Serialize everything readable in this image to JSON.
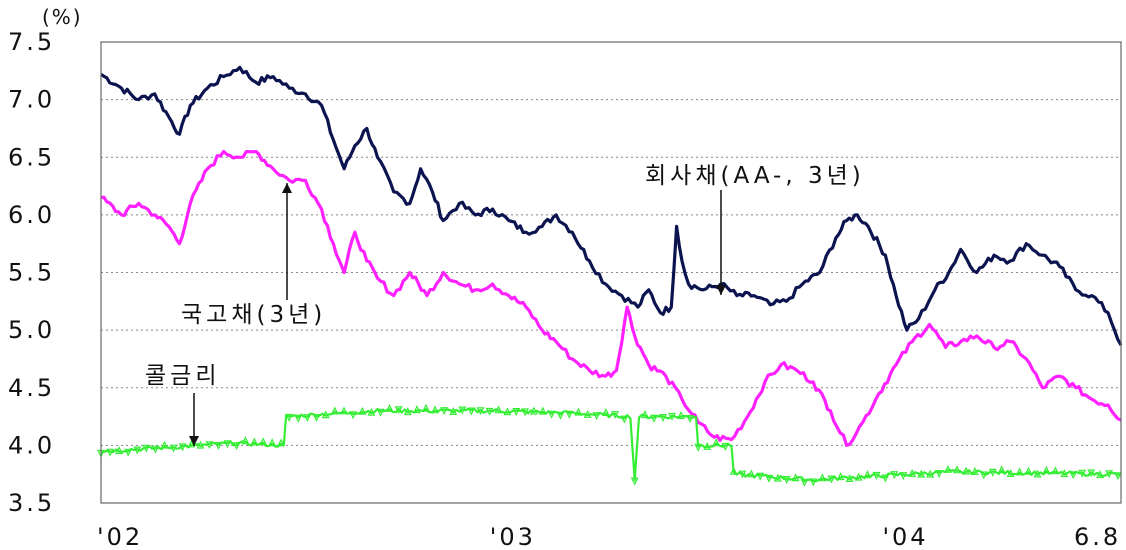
{
  "chart_data": {
    "type": "line",
    "unit_label": "(%)",
    "ylim": [
      3.5,
      7.5
    ],
    "yticks": [
      7.5,
      7.0,
      6.5,
      6.0,
      5.5,
      5.0,
      4.5,
      4.0,
      3.5
    ],
    "ytick_labels": [
      "7.5",
      "7.0",
      "6.5",
      "6.0",
      "5.5",
      "5.0",
      "4.5",
      "4.0",
      "3.5"
    ],
    "x_range": [
      "2002-01-01",
      "2004-08-06"
    ],
    "xticks": [
      {
        "date": "2002-01-01",
        "label": "'02"
      },
      {
        "date": "2003-01-01",
        "label": "'03"
      },
      {
        "date": "2004-01-01",
        "label": "'04"
      },
      {
        "date": "2004-08-01",
        "label": "6.8"
      }
    ],
    "grid": {
      "horizontal": true,
      "style": "dotted"
    },
    "series": [
      {
        "name": "회사채(AA-, 3년)",
        "color": "#0c1450",
        "points": [
          [
            "2002-01-01",
            7.22
          ],
          [
            "2002-01-20",
            7.1
          ],
          [
            "2002-02-05",
            7.0
          ],
          [
            "2002-02-20",
            7.05
          ],
          [
            "2002-03-05",
            6.85
          ],
          [
            "2002-03-15",
            6.7
          ],
          [
            "2002-03-25",
            6.95
          ],
          [
            "2002-04-10",
            7.1
          ],
          [
            "2002-04-25",
            7.2
          ],
          [
            "2002-05-10",
            7.28
          ],
          [
            "2002-05-25",
            7.15
          ],
          [
            "2002-06-10",
            7.2
          ],
          [
            "2002-06-25",
            7.1
          ],
          [
            "2002-07-10",
            7.05
          ],
          [
            "2002-07-25",
            6.95
          ],
          [
            "2002-08-05",
            6.65
          ],
          [
            "2002-08-15",
            6.4
          ],
          [
            "2002-08-25",
            6.6
          ],
          [
            "2002-09-05",
            6.75
          ],
          [
            "2002-09-15",
            6.5
          ],
          [
            "2002-09-30",
            6.2
          ],
          [
            "2002-10-15",
            6.1
          ],
          [
            "2002-10-25",
            6.4
          ],
          [
            "2002-11-05",
            6.2
          ],
          [
            "2002-11-15",
            5.95
          ],
          [
            "2002-11-30",
            6.1
          ],
          [
            "2002-12-15",
            6.0
          ],
          [
            "2002-12-31",
            6.05
          ],
          [
            "2003-01-15",
            5.95
          ],
          [
            "2003-01-31",
            5.85
          ],
          [
            "2003-02-15",
            5.9
          ],
          [
            "2003-02-28",
            6.0
          ],
          [
            "2003-03-15",
            5.85
          ],
          [
            "2003-03-31",
            5.6
          ],
          [
            "2003-04-15",
            5.4
          ],
          [
            "2003-04-30",
            5.3
          ],
          [
            "2003-05-15",
            5.2
          ],
          [
            "2003-05-25",
            5.35
          ],
          [
            "2003-06-05",
            5.15
          ],
          [
            "2003-06-15",
            5.2
          ],
          [
            "2003-06-20",
            5.9
          ],
          [
            "2003-06-25",
            5.6
          ],
          [
            "2003-07-01",
            5.4
          ],
          [
            "2003-07-15",
            5.35
          ],
          [
            "2003-07-31",
            5.4
          ],
          [
            "2003-08-15",
            5.3
          ],
          [
            "2003-08-31",
            5.3
          ],
          [
            "2003-09-15",
            5.22
          ],
          [
            "2003-09-30",
            5.25
          ],
          [
            "2003-10-15",
            5.4
          ],
          [
            "2003-10-31",
            5.5
          ],
          [
            "2003-11-15",
            5.8
          ],
          [
            "2003-11-25",
            5.95
          ],
          [
            "2003-12-05",
            6.0
          ],
          [
            "2003-12-15",
            5.9
          ],
          [
            "2003-12-31",
            5.65
          ],
          [
            "2004-01-10",
            5.3
          ],
          [
            "2004-01-20",
            5.0
          ],
          [
            "2004-01-31",
            5.1
          ],
          [
            "2004-02-15",
            5.35
          ],
          [
            "2004-02-28",
            5.5
          ],
          [
            "2004-03-10",
            5.7
          ],
          [
            "2004-03-25",
            5.5
          ],
          [
            "2004-04-10",
            5.65
          ],
          [
            "2004-04-25",
            5.6
          ],
          [
            "2004-05-10",
            5.75
          ],
          [
            "2004-05-25",
            5.65
          ],
          [
            "2004-06-10",
            5.55
          ],
          [
            "2004-06-25",
            5.35
          ],
          [
            "2004-07-10",
            5.3
          ],
          [
            "2004-07-25",
            5.15
          ],
          [
            "2004-08-06",
            4.87
          ]
        ]
      },
      {
        "name": "국고채(3년)",
        "color": "#ff21ff",
        "points": [
          [
            "2002-01-01",
            6.15
          ],
          [
            "2002-01-20",
            6.0
          ],
          [
            "2002-02-05",
            6.1
          ],
          [
            "2002-02-20",
            6.0
          ],
          [
            "2002-03-05",
            5.9
          ],
          [
            "2002-03-15",
            5.75
          ],
          [
            "2002-03-25",
            6.1
          ],
          [
            "2002-04-10",
            6.4
          ],
          [
            "2002-04-25",
            6.55
          ],
          [
            "2002-05-10",
            6.5
          ],
          [
            "2002-05-25",
            6.55
          ],
          [
            "2002-06-10",
            6.4
          ],
          [
            "2002-06-25",
            6.3
          ],
          [
            "2002-07-10",
            6.3
          ],
          [
            "2002-07-25",
            6.05
          ],
          [
            "2002-08-05",
            5.75
          ],
          [
            "2002-08-15",
            5.5
          ],
          [
            "2002-08-25",
            5.85
          ],
          [
            "2002-09-05",
            5.6
          ],
          [
            "2002-09-15",
            5.45
          ],
          [
            "2002-09-30",
            5.3
          ],
          [
            "2002-10-15",
            5.5
          ],
          [
            "2002-10-31",
            5.3
          ],
          [
            "2002-11-15",
            5.5
          ],
          [
            "2002-11-30",
            5.4
          ],
          [
            "2002-12-15",
            5.35
          ],
          [
            "2002-12-31",
            5.4
          ],
          [
            "2003-01-15",
            5.3
          ],
          [
            "2003-01-31",
            5.2
          ],
          [
            "2003-02-15",
            5.0
          ],
          [
            "2003-02-28",
            4.9
          ],
          [
            "2003-03-15",
            4.75
          ],
          [
            "2003-03-31",
            4.65
          ],
          [
            "2003-04-15",
            4.6
          ],
          [
            "2003-04-25",
            4.65
          ],
          [
            "2003-05-05",
            5.2
          ],
          [
            "2003-05-12",
            4.95
          ],
          [
            "2003-05-25",
            4.7
          ],
          [
            "2003-06-10",
            4.6
          ],
          [
            "2003-06-25",
            4.4
          ],
          [
            "2003-07-10",
            4.2
          ],
          [
            "2003-07-25",
            4.07
          ],
          [
            "2003-08-10",
            4.05
          ],
          [
            "2003-08-25",
            4.25
          ],
          [
            "2003-09-10",
            4.55
          ],
          [
            "2003-09-25",
            4.7
          ],
          [
            "2003-10-10",
            4.65
          ],
          [
            "2003-10-25",
            4.55
          ],
          [
            "2003-11-10",
            4.3
          ],
          [
            "2003-11-25",
            4.0
          ],
          [
            "2003-12-10",
            4.2
          ],
          [
            "2003-12-25",
            4.45
          ],
          [
            "2004-01-10",
            4.7
          ],
          [
            "2004-01-25",
            4.9
          ],
          [
            "2004-02-10",
            5.05
          ],
          [
            "2004-02-25",
            4.85
          ],
          [
            "2004-03-10",
            4.9
          ],
          [
            "2004-03-25",
            4.95
          ],
          [
            "2004-04-10",
            4.85
          ],
          [
            "2004-04-25",
            4.9
          ],
          [
            "2004-05-10",
            4.75
          ],
          [
            "2004-05-25",
            4.5
          ],
          [
            "2004-06-10",
            4.6
          ],
          [
            "2004-06-25",
            4.5
          ],
          [
            "2004-07-10",
            4.4
          ],
          [
            "2004-07-25",
            4.35
          ],
          [
            "2004-08-06",
            4.22
          ]
        ]
      },
      {
        "name": "콜금리",
        "color": "#33ee33",
        "points": [
          [
            "2002-01-01",
            3.95
          ],
          [
            "2002-03-01",
            3.98
          ],
          [
            "2002-05-07",
            4.02
          ],
          [
            "2002-06-20",
            4.0
          ],
          [
            "2002-06-22",
            4.25
          ],
          [
            "2002-09-15",
            4.3
          ],
          [
            "2002-12-31",
            4.3
          ],
          [
            "2003-03-15",
            4.28
          ],
          [
            "2003-05-08",
            4.25
          ],
          [
            "2003-05-12",
            3.7
          ],
          [
            "2003-05-16",
            4.25
          ],
          [
            "2003-07-08",
            4.25
          ],
          [
            "2003-07-10",
            4.0
          ],
          [
            "2003-08-10",
            4.0
          ],
          [
            "2003-08-12",
            3.75
          ],
          [
            "2003-10-25",
            3.7
          ],
          [
            "2003-11-25",
            3.72
          ],
          [
            "2004-03-01",
            3.77
          ],
          [
            "2004-08-06",
            3.75
          ]
        ]
      }
    ],
    "annotations": [
      {
        "text": "회사채(AA-, 3년)",
        "series": "회사채(AA-, 3년)"
      },
      {
        "text": "국고채(3년)",
        "series": "국고채(3년)"
      },
      {
        "text": "콜금리",
        "series": "콜금리"
      }
    ]
  }
}
